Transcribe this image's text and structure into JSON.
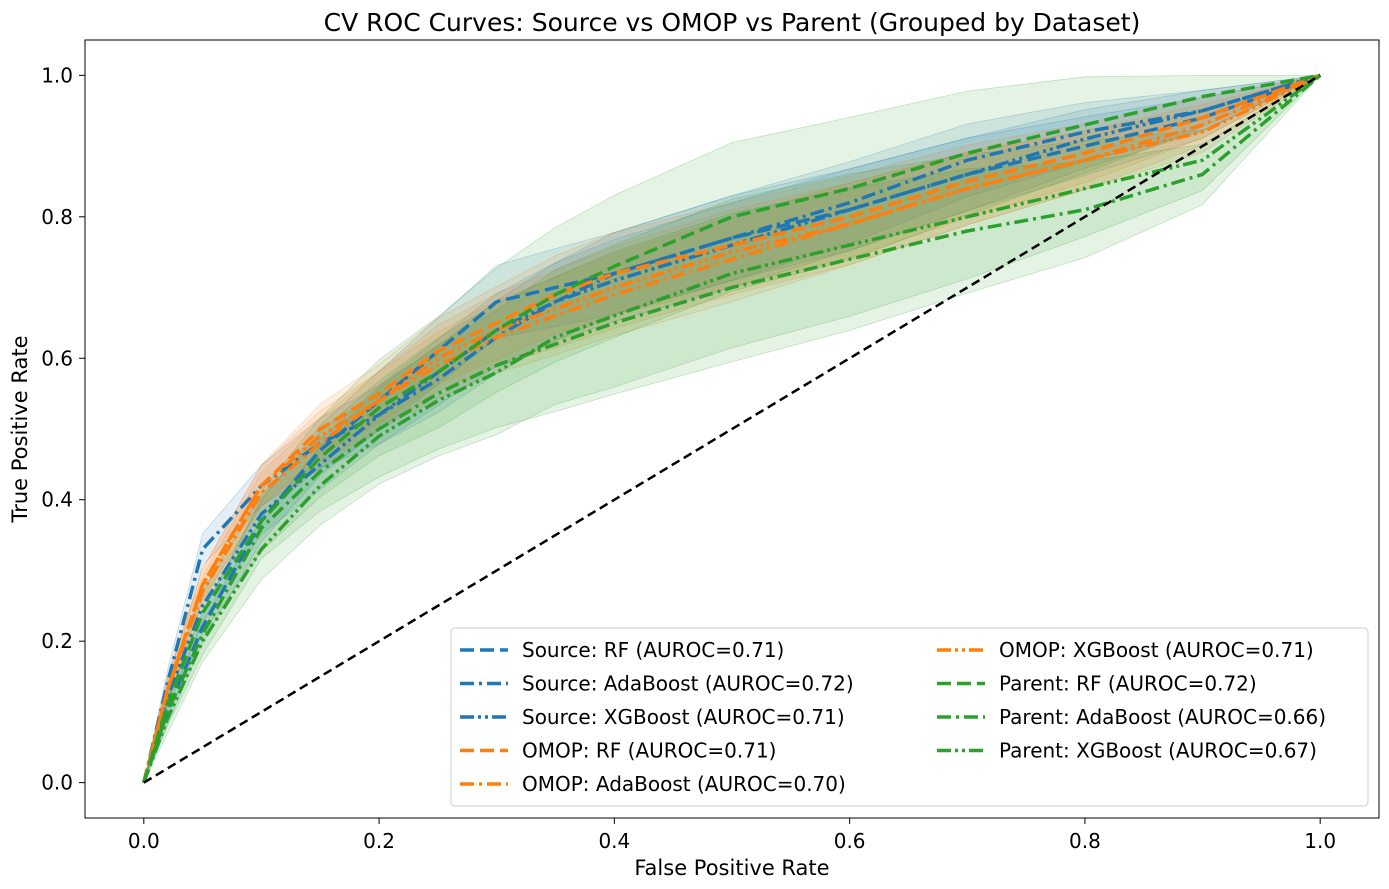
{
  "chart_data": {
    "type": "line",
    "title": "CV ROC Curves: Source vs OMOP vs Parent (Grouped by Dataset)",
    "xlabel": "False Positive Rate",
    "ylabel": "True Positive Rate",
    "xlim": [
      -0.05,
      1.05
    ],
    "ylim": [
      -0.05,
      1.05
    ],
    "xticks": [
      0.0,
      0.2,
      0.4,
      0.6,
      0.8,
      1.0
    ],
    "yticks": [
      0.0,
      0.2,
      0.4,
      0.6,
      0.8,
      1.0
    ],
    "tick_labels": [
      "0.0",
      "0.2",
      "0.4",
      "0.6",
      "0.8",
      "1.0"
    ],
    "grid": false,
    "legend_position": "lower-right",
    "x": [
      0.0,
      0.02,
      0.05,
      0.1,
      0.15,
      0.2,
      0.25,
      0.3,
      0.35,
      0.4,
      0.5,
      0.6,
      0.7,
      0.8,
      0.9,
      1.0
    ],
    "series": [
      {
        "name": "Source: RF (AUROC=0.71)",
        "color": "#1f77b4",
        "dash": "dashed",
        "values": [
          0.0,
          0.1,
          0.22,
          0.37,
          0.47,
          0.54,
          0.61,
          0.68,
          0.7,
          0.72,
          0.77,
          0.81,
          0.86,
          0.9,
          0.94,
          1.0
        ]
      },
      {
        "name": "Source: AdaBoost (AUROC=0.72)",
        "color": "#1f77b4",
        "dash": "dashdot",
        "values": [
          0.0,
          0.14,
          0.33,
          0.42,
          0.48,
          0.52,
          0.57,
          0.63,
          0.68,
          0.72,
          0.77,
          0.82,
          0.88,
          0.92,
          0.95,
          1.0
        ]
      },
      {
        "name": "Source: XGBoost (AUROC=0.71)",
        "color": "#1f77b4",
        "dash": "dashdotdot",
        "values": [
          0.0,
          0.12,
          0.25,
          0.38,
          0.45,
          0.52,
          0.58,
          0.64,
          0.68,
          0.71,
          0.76,
          0.81,
          0.86,
          0.91,
          0.95,
          1.0
        ]
      },
      {
        "name": "OMOP: RF (AUROC=0.71)",
        "color": "#ff7f0e",
        "dash": "dashed",
        "values": [
          0.0,
          0.13,
          0.28,
          0.42,
          0.5,
          0.55,
          0.61,
          0.65,
          0.69,
          0.72,
          0.76,
          0.8,
          0.85,
          0.89,
          0.94,
          1.0
        ]
      },
      {
        "name": "OMOP: AdaBoost (AUROC=0.70)",
        "color": "#ff7f0e",
        "dash": "dashdot",
        "values": [
          0.0,
          0.13,
          0.27,
          0.41,
          0.48,
          0.54,
          0.59,
          0.63,
          0.66,
          0.69,
          0.74,
          0.79,
          0.84,
          0.88,
          0.93,
          1.0
        ]
      },
      {
        "name": "OMOP: XGBoost (AUROC=0.71)",
        "color": "#ff7f0e",
        "dash": "dashdotdot",
        "values": [
          0.0,
          0.13,
          0.28,
          0.42,
          0.49,
          0.54,
          0.6,
          0.64,
          0.67,
          0.7,
          0.75,
          0.79,
          0.84,
          0.88,
          0.92,
          1.0
        ]
      },
      {
        "name": "Parent: RF (AUROC=0.72)",
        "color": "#2ca02c",
        "dash": "dashed",
        "values": [
          0.0,
          0.11,
          0.24,
          0.37,
          0.46,
          0.53,
          0.58,
          0.64,
          0.69,
          0.73,
          0.8,
          0.84,
          0.89,
          0.93,
          0.97,
          1.0
        ]
      },
      {
        "name": "Parent: AdaBoost (AUROC=0.66)",
        "color": "#2ca02c",
        "dash": "dashdot",
        "values": [
          0.0,
          0.1,
          0.21,
          0.36,
          0.44,
          0.5,
          0.55,
          0.59,
          0.62,
          0.65,
          0.7,
          0.74,
          0.78,
          0.81,
          0.86,
          1.0
        ]
      },
      {
        "name": "Parent: XGBoost (AUROC=0.67)",
        "color": "#2ca02c",
        "dash": "dashdotdot",
        "values": [
          0.0,
          0.09,
          0.2,
          0.33,
          0.42,
          0.49,
          0.54,
          0.58,
          0.63,
          0.66,
          0.72,
          0.76,
          0.8,
          0.84,
          0.88,
          1.0
        ]
      }
    ],
    "chance_line": {
      "name": "chance",
      "color": "#000000",
      "x": [
        0.0,
        1.0
      ],
      "values": [
        0.0,
        1.0
      ]
    }
  }
}
